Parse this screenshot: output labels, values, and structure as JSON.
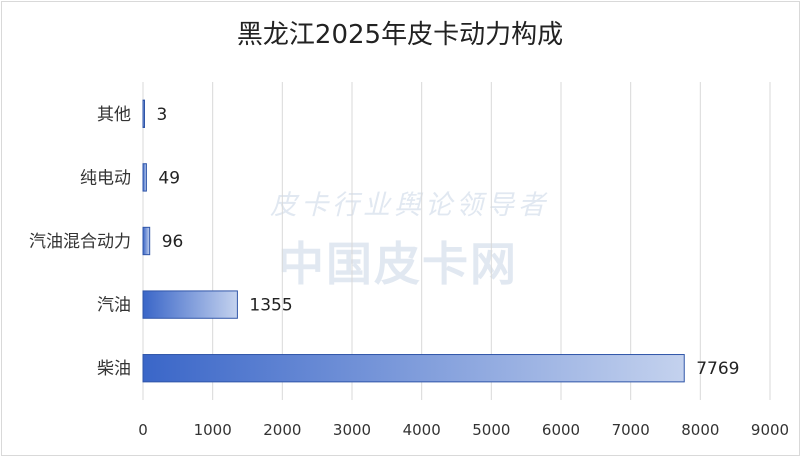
{
  "chart_data": {
    "type": "bar",
    "orientation": "horizontal",
    "title": "黑龙江2025年皮卡动力构成",
    "categories": [
      "其他",
      "纯电动",
      "汽油混合动力",
      "汽油",
      "柴油"
    ],
    "values": [
      3,
      49,
      96,
      1355,
      7769
    ],
    "xlim": [
      0,
      9000
    ],
    "xticks": [
      0,
      1000,
      2000,
      3000,
      4000,
      5000,
      6000,
      7000,
      8000,
      9000
    ],
    "grid": true,
    "bar_color_start": "#3a66c8",
    "bar_color_end": "#c4d2ee"
  },
  "watermark": {
    "line1": "皮卡行业舆论领导者",
    "line2": "中国皮卡网"
  }
}
